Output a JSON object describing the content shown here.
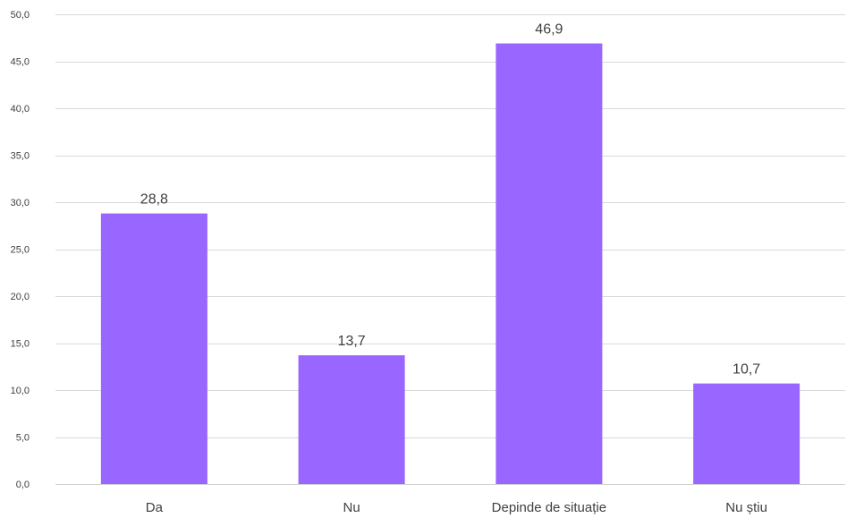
{
  "chart_data": {
    "type": "bar",
    "title": "",
    "xlabel": "",
    "ylabel": "",
    "categories": [
      "Da",
      "Nu",
      "Depinde de situație",
      "Nu știu"
    ],
    "values": [
      28.8,
      13.7,
      46.9,
      10.7
    ],
    "value_labels": [
      "28,8",
      "13,7",
      "46,9",
      "10,7"
    ],
    "ylim": [
      0,
      50
    ],
    "y_ticks": [
      0,
      5,
      10,
      15,
      20,
      25,
      30,
      35,
      40,
      45,
      50
    ],
    "y_tick_labels": [
      "0,0",
      "5,0",
      "10,0",
      "15,0",
      "20,0",
      "25,0",
      "30,0",
      "35,0",
      "40,0",
      "45,0",
      "50,0"
    ],
    "grid": true,
    "legend": "none",
    "bar_color": "#9966ff",
    "grid_color": "#d9d9d9",
    "text_color": "#404040"
  }
}
